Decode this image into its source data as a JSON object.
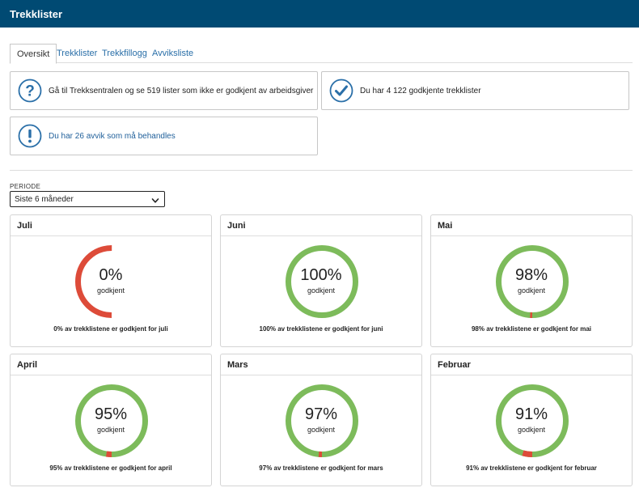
{
  "header": {
    "title": "Trekklister"
  },
  "tabs": [
    {
      "label": "Oversikt",
      "active": true
    },
    {
      "label": "Trekklister",
      "active": false
    },
    {
      "label": "Trekkfillogg",
      "active": false
    },
    {
      "label": "Avviksliste",
      "active": false
    }
  ],
  "info_boxes": [
    {
      "icon": "question-icon",
      "text": "Gå til Trekksentralen og se 519 lister som ikke er godkjent av arbeidsgiver"
    },
    {
      "icon": "check-icon",
      "text": "Du har 4 122 godkjente trekklister"
    },
    {
      "icon": "exclamation-icon",
      "text": "Du har 26 avvik som må behandles"
    }
  ],
  "periode": {
    "label": "PERIODE",
    "selected": "Siste 6 måneder"
  },
  "colors": {
    "brand": "#004a73",
    "approved": "#7dbb5b",
    "rejected": "#dd4b39",
    "icon": "#2a6fa8"
  },
  "months": [
    {
      "name": "Juli",
      "percent": 0,
      "pct_label": "0%",
      "status": "godkjent",
      "summary": "0% av trekklistene er godkjent for juli"
    },
    {
      "name": "Juni",
      "percent": 100,
      "pct_label": "100%",
      "status": "godkjent",
      "summary": "100% av trekklistene er godkjent for juni"
    },
    {
      "name": "Mai",
      "percent": 98,
      "pct_label": "98%",
      "status": "godkjent",
      "summary": "98% av trekklistene er godkjent for mai"
    },
    {
      "name": "April",
      "percent": 95,
      "pct_label": "95%",
      "status": "godkjent",
      "summary": "95% av trekklistene er godkjent for april"
    },
    {
      "name": "Mars",
      "percent": 97,
      "pct_label": "97%",
      "status": "godkjent",
      "summary": "97% av trekklistene er godkjent for mars"
    },
    {
      "name": "Februar",
      "percent": 91,
      "pct_label": "91%",
      "status": "godkjent",
      "summary": "91% av trekklistene er godkjent for februar"
    }
  ]
}
